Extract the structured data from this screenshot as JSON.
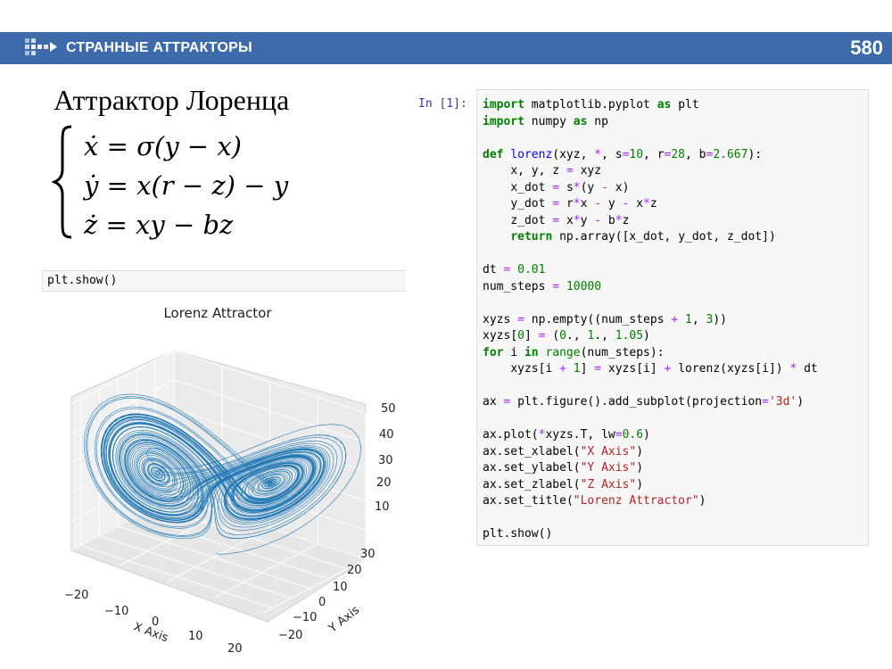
{
  "header": {
    "title": "СТРАННЫЕ АТТРАКТОРЫ",
    "page_number": "580"
  },
  "slide": {
    "title": "Аттрактор Лоренца",
    "equations": [
      "ẋ = σ(y − x)",
      "ẏ = x(r − z) − y",
      "ż = xy − bz"
    ]
  },
  "small_cell": {
    "code": "plt.show()"
  },
  "code_cell": {
    "prompt": "In [1]:",
    "lines": [
      "import matplotlib.pyplot as plt",
      "import numpy as np",
      "",
      "def lorenz(xyz, *, s=10, r=28, b=2.667):",
      "    x, y, z = xyz",
      "    x_dot = s*(y - x)",
      "    y_dot = r*x - y - x*z",
      "    z_dot = x*y - b*z",
      "    return np.array([x_dot, y_dot, z_dot])",
      "",
      "dt = 0.01",
      "num_steps = 10000",
      "",
      "xyzs = np.empty((num_steps + 1, 3))",
      "xyzs[0] = (0., 1., 1.05)",
      "for i in range(num_steps):",
      "    xyzs[i + 1] = xyzs[i] + lorenz(xyzs[i]) * dt",
      "",
      "ax = plt.figure().add_subplot(projection='3d')",
      "",
      "ax.plot(*xyzs.T, lw=0.6)",
      "ax.set_xlabel(\"X Axis\")",
      "ax.set_ylabel(\"Y Axis\")",
      "ax.set_zlabel(\"Z Axis\")",
      "ax.set_title(\"Lorenz Attractor\")",
      "",
      "plt.show()"
    ]
  },
  "chart_data": {
    "type": "line",
    "title": "Lorenz Attractor",
    "xlabel": "X Axis",
    "ylabel": "Y Axis",
    "zlabel": "",
    "x_ticks": [
      "−20",
      "−10",
      "0",
      "10",
      "20"
    ],
    "y_ticks": [
      "−20",
      "−10",
      "0",
      "10",
      "20",
      "30"
    ],
    "z_ticks": [
      "10",
      "20",
      "30",
      "40",
      "50"
    ],
    "xlim": [
      -20,
      20
    ],
    "ylim": [
      -25,
      30
    ],
    "zlim": [
      0,
      50
    ],
    "line_color": "#1f77b4",
    "line_width": 0.6,
    "series": [
      {
        "system": "lorenz",
        "s": 10,
        "r": 28,
        "b": 2.667,
        "dt": 0.01,
        "num_steps": 10000,
        "initial": [
          0.0,
          1.0,
          1.05
        ]
      }
    ]
  },
  "colors": {
    "header_bar": "#3d6aaa",
    "code_keyword": "#008000",
    "code_function": "#0000ff",
    "code_operator": "#aa22ff",
    "code_string": "#ba2121",
    "prompt": "#303f9f"
  }
}
